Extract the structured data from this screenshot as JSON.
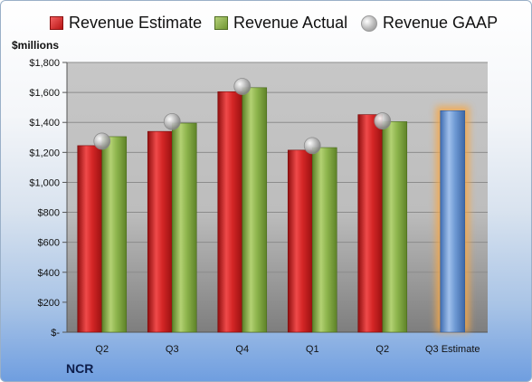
{
  "chart_data": {
    "type": "bar",
    "ylabel": "$millions",
    "ticker": "NCR",
    "categories": [
      "Q2",
      "Q3",
      "Q4",
      "Q1",
      "Q2",
      "Q3 Estimate"
    ],
    "yticks": [
      "$-",
      "$200",
      "$400",
      "$600",
      "$800",
      "$1,000",
      "$1,200",
      "$1,400",
      "$1,600",
      "$1,800"
    ],
    "ylim": [
      0,
      1800
    ],
    "legend_position": "top",
    "series": [
      {
        "name": "Revenue Estimate",
        "values": [
          1245,
          1340,
          1605,
          1215,
          1452,
          null
        ],
        "color": "#d42626"
      },
      {
        "name": "Revenue Actual",
        "values": [
          1305,
          1395,
          1632,
          1232,
          1405,
          null
        ],
        "color": "#8db44c"
      },
      {
        "name": "Revenue GAAP",
        "values": [
          1275,
          1405,
          1640,
          1245,
          1410,
          null
        ],
        "color": "#a0a0a0"
      }
    ],
    "estimate": {
      "category_index": 5,
      "value": 1478,
      "color": "#6f9ad4",
      "glow": "#f5a84a"
    }
  }
}
